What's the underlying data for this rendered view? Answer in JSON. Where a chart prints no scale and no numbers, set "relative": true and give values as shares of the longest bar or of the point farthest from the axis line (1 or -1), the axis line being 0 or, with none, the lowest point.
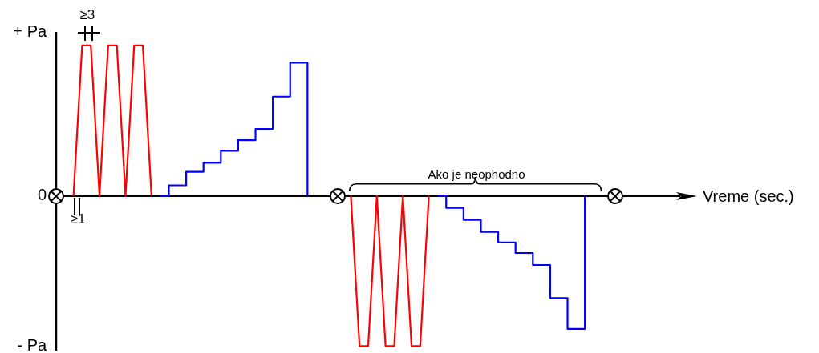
{
  "chart_data": {
    "type": "line",
    "relative": true,
    "xlabel": "Vreme (sec.)",
    "categories": [
      null,
      null,
      null,
      null,
      null,
      null,
      null,
      null,
      null,
      null,
      null,
      null,
      null,
      null,
      null,
      null,
      null,
      null,
      null,
      null,
      null,
      null,
      null,
      null,
      null,
      null,
      null,
      null,
      null,
      null,
      null,
      null,
      null,
      null,
      null,
      null,
      null,
      null,
      null,
      null,
      null,
      null,
      null,
      null,
      null,
      null,
      null,
      null,
      null,
      null,
      null,
      null,
      null,
      null,
      null,
      null,
      null,
      null,
      null,
      null,
      null,
      null,
      null,
      null,
      null,
      null,
      null,
      null,
      null,
      null,
      null,
      null,
      null
    ],
    "series": [
      {
        "color": "#ff0000",
        "values": [
          null,
          null,
          0,
          1,
          1,
          0,
          1,
          1,
          0,
          1,
          1,
          0,
          null,
          null,
          null,
          null,
          null,
          null,
          null,
          null,
          null,
          null,
          null,
          null,
          null,
          null,
          null,
          null,
          null,
          null,
          null,
          null,
          null,
          null,
          null,
          null,
          null,
          null,
          null,
          null,
          null,
          null,
          null,
          null,
          null,
          null,
          null,
          null,
          null,
          null,
          null,
          null,
          null,
          null,
          null,
          null,
          null,
          null,
          null,
          null,
          null,
          null,
          null,
          null,
          null,
          null,
          null,
          null,
          null,
          null,
          null,
          null,
          null
        ]
      },
      {
        "type": "step",
        "color": "#0000ff",
        "values": [
          null,
          null,
          null,
          null,
          null,
          null,
          null,
          null,
          null,
          null,
          null,
          null,
          0,
          0.07,
          0.07,
          0.16,
          0.16,
          0.22,
          0.22,
          0.3,
          0.3,
          0.37,
          0.37,
          0.445,
          0.445,
          0.66,
          0.66,
          0.885,
          0.885,
          0,
          null,
          null,
          null,
          null,
          null,
          null,
          null,
          null,
          null,
          null,
          null,
          null,
          null,
          null,
          null,
          null,
          null,
          null,
          null,
          null,
          null,
          null,
          null,
          null,
          null,
          null,
          null,
          null,
          null,
          null,
          null,
          null,
          null,
          null,
          null,
          null,
          null,
          null,
          null,
          null,
          null,
          null,
          null
        ]
      },
      {
        "color": "#ff0000",
        "values": [
          null,
          null,
          null,
          null,
          null,
          null,
          null,
          null,
          null,
          null,
          null,
          null,
          null,
          null,
          null,
          null,
          null,
          null,
          null,
          null,
          null,
          null,
          null,
          null,
          null,
          null,
          null,
          null,
          null,
          null,
          null,
          null,
          null,
          null,
          0,
          -1,
          -1,
          0,
          -1,
          -1,
          0,
          -1,
          -1,
          0,
          null,
          null,
          null,
          null,
          null,
          null,
          null,
          null,
          null,
          null,
          null,
          null,
          null,
          null,
          null,
          null,
          null,
          null,
          null,
          null,
          null,
          null,
          null,
          null,
          null,
          null,
          null,
          null,
          null
        ]
      },
      {
        "type": "step",
        "color": "#0000ff",
        "values": [
          null,
          null,
          null,
          null,
          null,
          null,
          null,
          null,
          null,
          null,
          null,
          null,
          null,
          null,
          null,
          null,
          null,
          null,
          null,
          null,
          null,
          null,
          null,
          null,
          null,
          null,
          null,
          null,
          null,
          null,
          null,
          null,
          null,
          null,
          null,
          null,
          null,
          null,
          null,
          null,
          null,
          null,
          null,
          null,
          0,
          -0.08,
          -0.08,
          -0.16,
          -0.16,
          -0.24,
          -0.24,
          -0.31,
          -0.31,
          -0.38,
          -0.38,
          -0.46,
          -0.46,
          -0.68,
          -0.68,
          -0.885,
          -0.885,
          0,
          null,
          null,
          null,
          null,
          null,
          null,
          null,
          null,
          null,
          null,
          null
        ]
      }
    ],
    "annotations": [
      "+ Pa",
      "0",
      "- Pa",
      "≥3",
      "≥1",
      "Ako je neophodno"
    ]
  }
}
